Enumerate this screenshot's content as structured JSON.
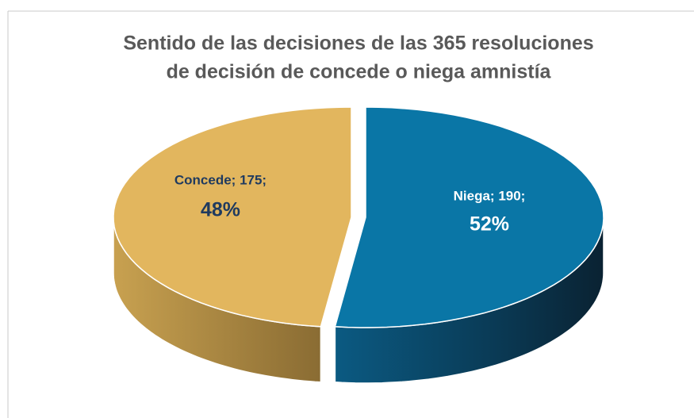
{
  "chart_data": {
    "type": "pie",
    "title": [
      "Sentido de las decisiones de las 365 resoluciones",
      "de decisión de concede o niega amnistía"
    ],
    "categories": [
      "Niega",
      "Concede"
    ],
    "values": [
      190,
      175
    ],
    "value_labels": [
      "Niega; 190;",
      "Concede; 175;"
    ],
    "percents": [
      52,
      48
    ],
    "percent_labels": [
      "52%",
      "48%"
    ],
    "colors": [
      "#0a76a6",
      "#e2b65e"
    ]
  }
}
